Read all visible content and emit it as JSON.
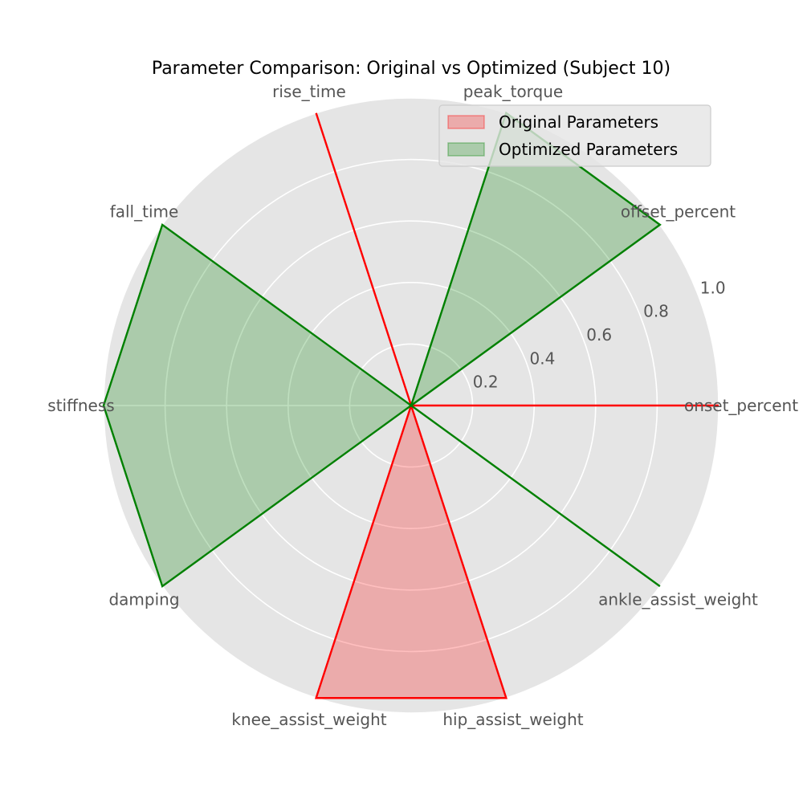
{
  "chart_data": {
    "type": "radar",
    "title": "Parameter Comparison: Original vs Optimized (Subject 10)",
    "axes": [
      "onset_percent",
      "offset_percent",
      "peak_torque",
      "rise_time",
      "fall_time",
      "stiffness",
      "damping",
      "knee_assist_weight",
      "hip_assist_weight",
      "ankle_assist_weight"
    ],
    "rlim": [
      0,
      1.0
    ],
    "rticks": [
      "0.2",
      "0.4",
      "0.6",
      "0.8",
      "1.0"
    ],
    "grid": true,
    "legend_position": "top-right",
    "series": [
      {
        "name": "Original Parameters",
        "color": "#ff0000",
        "values": [
          1.0,
          0.0,
          0.0,
          1.0,
          0.0,
          0.0,
          0.0,
          1.0,
          1.0,
          0.0
        ]
      },
      {
        "name": "Optimized Parameters",
        "color": "#008000",
        "values": [
          0.0,
          1.0,
          1.0,
          0.0,
          1.0,
          1.0,
          1.0,
          0.0,
          0.0,
          1.0
        ]
      }
    ]
  }
}
